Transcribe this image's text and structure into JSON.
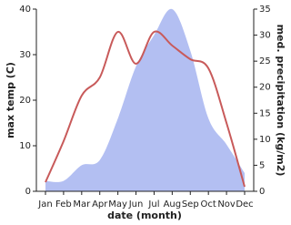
{
  "chart_data": {
    "type": "line",
    "x_label": "date (month)",
    "y_label": "max temp (C)",
    "y2_label": "med. precipitation (kg/m2)",
    "categories": [
      "Jan",
      "Feb",
      "Mar",
      "Apr",
      "May",
      "Jun",
      "Jul",
      "Aug",
      "Sep",
      "Oct",
      "Nov",
      "Dec"
    ],
    "series": [
      {
        "name": "max temp",
        "color": "#c85a5a",
        "values": [
          2,
          11,
          21,
          25,
          35,
          28,
          35,
          32,
          29,
          27,
          15,
          1
        ]
      },
      {
        "name": "med. precipitation",
        "color": "#b3bff2",
        "axis": "y2",
        "values": [
          2,
          2,
          5,
          6,
          14,
          24,
          30,
          35,
          27,
          14,
          9,
          3.5
        ]
      }
    ],
    "ylim": [
      0,
      40
    ],
    "yticks": [
      0,
      10,
      20,
      30,
      40
    ],
    "y2lim": [
      0,
      35
    ],
    "y2ticks": [
      0,
      5,
      10,
      15,
      20,
      25,
      30,
      35
    ]
  }
}
